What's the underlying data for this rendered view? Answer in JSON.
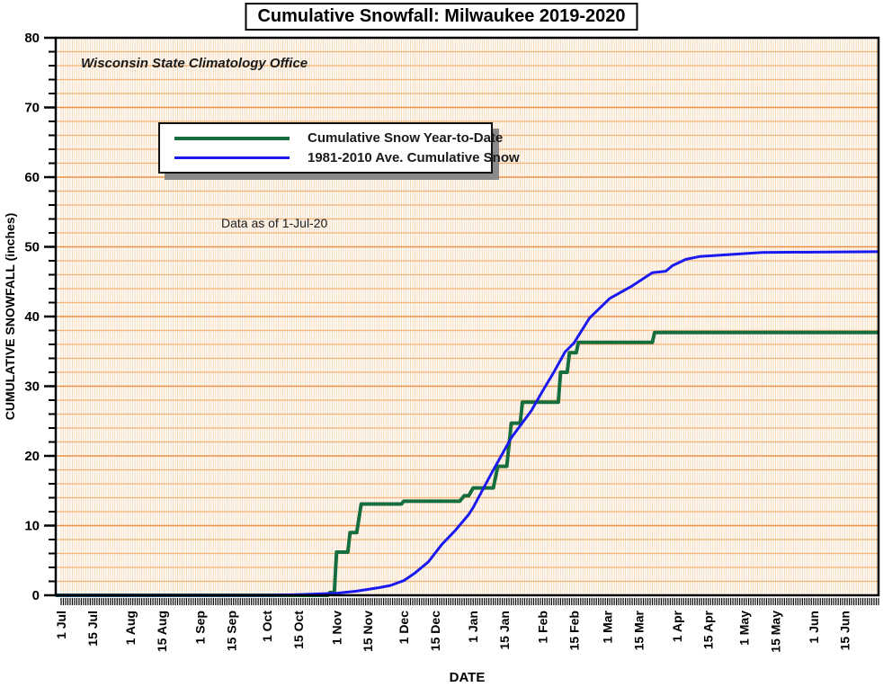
{
  "title": "Cumulative Snowfall: Milwaukee 2019-2020",
  "annotations": {
    "office": "Wisconsin State Climatology Office",
    "data_as_of": "Data as of 1-Jul-20"
  },
  "legend": {
    "items": [
      {
        "label": "Cumulative Snow Year-to-Date",
        "color": "#166e3e"
      },
      {
        "label": "1981-2010 Ave. Cumulative Snow",
        "color": "#1a1af0"
      }
    ]
  },
  "chart_data": {
    "type": "line",
    "title": "Cumulative Snowfall: Milwaukee 2019-2020",
    "xlabel": "DATE",
    "ylabel": "CUMULATIVE SNOWFALL (inches)",
    "ylim": [
      0,
      80
    ],
    "x_span_days": 365,
    "y_major_ticks": [
      0,
      10,
      20,
      30,
      40,
      50,
      60,
      70,
      80
    ],
    "y_minor_step": 2,
    "grid": {
      "vertical_step_days": 1,
      "h_minor_step": 2,
      "h_major_step": 10,
      "colors": {
        "vertical": "#f7d8b6",
        "h_minor": "#f4b377",
        "h_major": "#ec9248",
        "border": "#000000"
      }
    },
    "legend_position": "upper-left-inside",
    "x_ticks": [
      {
        "day": 0,
        "label": "1 Jul"
      },
      {
        "day": 14,
        "label": "15 Jul"
      },
      {
        "day": 31,
        "label": "1 Aug"
      },
      {
        "day": 45,
        "label": "15 Aug"
      },
      {
        "day": 62,
        "label": "1 Sep"
      },
      {
        "day": 76,
        "label": "15 Sep"
      },
      {
        "day": 92,
        "label": "1 Oct"
      },
      {
        "day": 106,
        "label": "15 Oct"
      },
      {
        "day": 123,
        "label": "1 Nov"
      },
      {
        "day": 137,
        "label": "15 Nov"
      },
      {
        "day": 153,
        "label": "1 Dec"
      },
      {
        "day": 167,
        "label": "15 Dec"
      },
      {
        "day": 184,
        "label": "1 Jan"
      },
      {
        "day": 198,
        "label": "15 Jan"
      },
      {
        "day": 215,
        "label": "1 Feb"
      },
      {
        "day": 229,
        "label": "15 Feb"
      },
      {
        "day": 244,
        "label": "1 Mar"
      },
      {
        "day": 258,
        "label": "15 Mar"
      },
      {
        "day": 275,
        "label": "1 Apr"
      },
      {
        "day": 289,
        "label": "15 Apr"
      },
      {
        "day": 305,
        "label": "1 May"
      },
      {
        "day": 319,
        "label": "15 May"
      },
      {
        "day": 336,
        "label": "1 Jun"
      },
      {
        "day": 350,
        "label": "15 Jun"
      }
    ],
    "series": [
      {
        "name": "Cumulative Snow Year-to-Date",
        "color": "#166e3e",
        "width": 4,
        "points": [
          [
            0,
            0
          ],
          [
            119,
            0
          ],
          [
            120,
            0.4
          ],
          [
            122,
            0.4
          ],
          [
            123,
            6.2
          ],
          [
            128,
            6.2
          ],
          [
            129,
            9.0
          ],
          [
            132,
            9.0
          ],
          [
            134,
            13.1
          ],
          [
            152,
            13.1
          ],
          [
            153,
            13.5
          ],
          [
            178,
            13.5
          ],
          [
            180,
            14.3
          ],
          [
            182,
            14.3
          ],
          [
            184,
            15.4
          ],
          [
            193,
            15.4
          ],
          [
            195,
            18.5
          ],
          [
            199,
            18.5
          ],
          [
            201,
            24.7
          ],
          [
            205,
            24.7
          ],
          [
            206,
            27.7
          ],
          [
            222,
            27.7
          ],
          [
            223,
            32.0
          ],
          [
            226,
            32.0
          ],
          [
            227,
            34.8
          ],
          [
            230,
            34.8
          ],
          [
            231,
            36.3
          ],
          [
            264,
            36.3
          ],
          [
            265,
            37.7
          ],
          [
            365,
            37.7
          ]
        ]
      },
      {
        "name": "1981-2010 Ave. Cumulative Snow",
        "color": "#1a1af0",
        "width": 3,
        "points": [
          [
            0,
            0
          ],
          [
            92,
            0
          ],
          [
            106,
            0.1
          ],
          [
            123,
            0.3
          ],
          [
            132,
            0.6
          ],
          [
            142,
            1.1
          ],
          [
            147,
            1.4
          ],
          [
            153,
            2.1
          ],
          [
            158,
            3.2
          ],
          [
            164,
            4.8
          ],
          [
            170,
            7.3
          ],
          [
            176,
            9.3
          ],
          [
            182,
            11.6
          ],
          [
            184,
            12.6
          ],
          [
            192,
            17.4
          ],
          [
            201,
            22.6
          ],
          [
            210,
            26.5
          ],
          [
            215,
            29.3
          ],
          [
            220,
            32.0
          ],
          [
            225,
            34.9
          ],
          [
            229,
            36.2
          ],
          [
            236,
            39.8
          ],
          [
            245,
            42.6
          ],
          [
            255,
            44.4
          ],
          [
            264,
            46.3
          ],
          [
            270,
            46.5
          ],
          [
            273,
            47.3
          ],
          [
            279,
            48.2
          ],
          [
            285,
            48.6
          ],
          [
            299,
            48.9
          ],
          [
            313,
            49.2
          ],
          [
            365,
            49.3
          ]
        ]
      }
    ]
  }
}
